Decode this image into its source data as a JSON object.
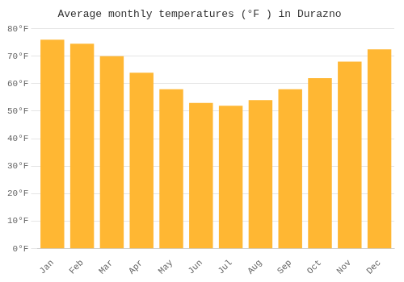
{
  "chart_data": {
    "type": "bar",
    "title": "Average monthly temperatures (°F ) in Durazno",
    "categories": [
      "Jan",
      "Feb",
      "Mar",
      "Apr",
      "May",
      "Jun",
      "Jul",
      "Aug",
      "Sep",
      "Oct",
      "Nov",
      "Dec"
    ],
    "values": [
      76,
      74.5,
      70,
      64,
      58,
      53,
      52,
      54,
      58,
      62,
      68,
      72.5
    ],
    "color": "#FFB733",
    "ylim": [
      0,
      80
    ],
    "yticks": [
      {
        "value": 0,
        "label": "0°F"
      },
      {
        "value": 10,
        "label": "10°F"
      },
      {
        "value": 20,
        "label": "20°F"
      },
      {
        "value": 30,
        "label": "30°F"
      },
      {
        "value": 40,
        "label": "40°F"
      },
      {
        "value": 50,
        "label": "50°F"
      },
      {
        "value": 60,
        "label": "60°F"
      },
      {
        "value": 70,
        "label": "70°F"
      },
      {
        "value": 80,
        "label": "80°F"
      }
    ],
    "grid": true
  }
}
